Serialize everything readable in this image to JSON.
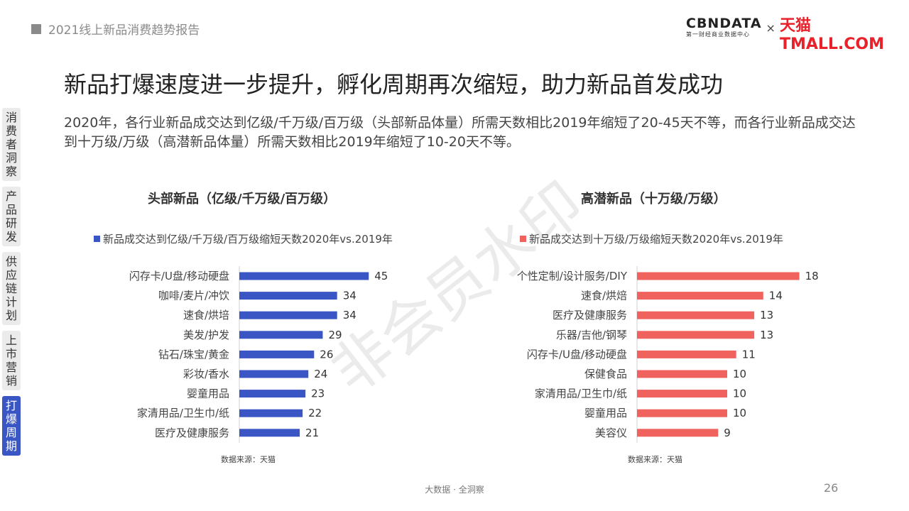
{
  "header": {
    "report_title": "2021线上新品消费趋势报告",
    "logo_cbn": "CBNDATA",
    "logo_cbn_sub": "第一财经商业数据中心",
    "logo_x": "×",
    "logo_tmall": "天猫TMALL.COM"
  },
  "main_title": "新品打爆速度进一步提升，孵化周期再次缩短，助力新品首发成功",
  "subtitle": "2020年，各行业新品成交达到亿级/千万级/百万级（头部新品体量）所需天数相比2019年缩短了20-45天不等，而各行业新品成交达到十万级/万级（高潜新品体量）所需天数相比2019年缩短了10-20天不等。",
  "side_nav": {
    "items": [
      {
        "label": "消费者洞察",
        "active": false
      },
      {
        "label": "产品研发",
        "active": false
      },
      {
        "label": "供应链计划",
        "active": false
      },
      {
        "label": "上市营销",
        "active": false
      },
      {
        "label": "打爆周期",
        "active": true
      }
    ]
  },
  "watermark": "非会员水印",
  "chart_data": [
    {
      "type": "bar",
      "orientation": "horizontal",
      "title": "头部新品（亿级/千万级/百万级）",
      "legend": "新品成交达到亿级/千万级/百万级缩短天数2020年vs.2019年",
      "color": "#3a56c4",
      "categories": [
        "闪存卡/U盘/移动硬盘",
        "咖啡/麦片/冲饮",
        "速食/烘培",
        "美发/护发",
        "钻石/珠宝/黄金",
        "彩妆/香水",
        "婴童用品",
        "家清用品/卫生巾/纸",
        "医疗及健康服务"
      ],
      "values": [
        45,
        34,
        34,
        29,
        26,
        24,
        23,
        22,
        21
      ],
      "source": "数据来源：天猫"
    },
    {
      "type": "bar",
      "orientation": "horizontal",
      "title": "高潜新品（十万级/万级）",
      "legend": "新品成交达到十万级/万级缩短天数2020年vs.2019年",
      "color": "#f0625e",
      "categories": [
        "个性定制/设计服务/DIY",
        "速食/烘焙",
        "医疗及健康服务",
        "乐器/吉他/钢琴",
        "闪存卡/U盘/移动硬盘",
        "保健食品",
        "家清用品/卫生巾/纸",
        "婴童用品",
        "美容仪"
      ],
      "values": [
        18,
        14,
        13,
        13,
        11,
        10,
        10,
        10,
        9
      ],
      "source": "数据来源：天猫"
    }
  ],
  "footer": {
    "text": "大数据 · 全洞察",
    "page_number": "26"
  }
}
